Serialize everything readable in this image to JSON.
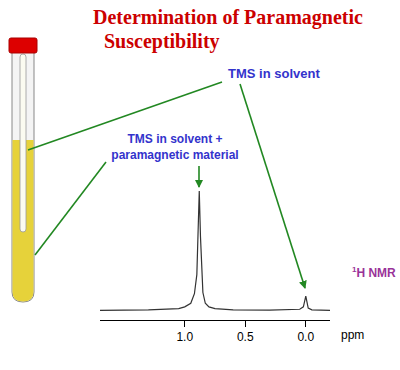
{
  "title_lines": [
    "Determination of Paramagnetic",
    "Susceptibility"
  ],
  "labels": {
    "reference": "TMS in solvent",
    "sample_lines": [
      "TMS in solvent +",
      "paramagnetic material"
    ],
    "nucleus": {
      "sup": "1",
      "text": "H NMR"
    }
  },
  "chart_data": {
    "type": "line",
    "x": [
      1.7,
      1.3,
      1.05,
      1.0,
      0.95,
      0.92,
      0.9,
      0.89,
      0.88,
      0.87,
      0.86,
      0.85,
      0.83,
      0.8,
      0.75,
      0.6,
      0.3,
      0.1,
      0.05,
      0.02,
      0.01,
      0.0,
      -0.01,
      -0.02,
      -0.05,
      -0.2
    ],
    "values": [
      0,
      0.5,
      1.5,
      3,
      6,
      14,
      30,
      60,
      100,
      62,
      30,
      15,
      6,
      3,
      1.5,
      0.5,
      0.3,
      0.5,
      1,
      3,
      8,
      12,
      7,
      2,
      0.5,
      0
    ],
    "color": "#333333",
    "xlim": [
      1.7,
      -0.2
    ],
    "ylim": [
      -8,
      105
    ],
    "xticks": [
      {
        "value": 1,
        "label": "1.0"
      },
      {
        "value": 0.5,
        "label": "0.5"
      },
      {
        "value": 0,
        "label": "0.0"
      }
    ],
    "xlabel": "ppm",
    "tick_labels": "x",
    "grid": false
  }
}
